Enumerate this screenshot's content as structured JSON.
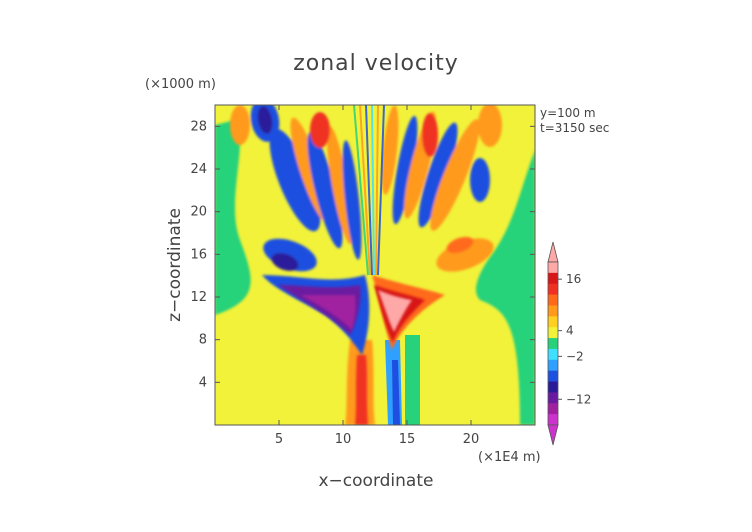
{
  "chart_data": {
    "type": "heatmap",
    "title": "zonal velocity",
    "xlabel": "x−coordinate",
    "ylabel": "z−coordinate",
    "x_units": "(×1E4 m)",
    "y_units": "(×1000 m)",
    "annotations": [
      "y=100 m",
      "t=3150 sec"
    ],
    "xlim": [
      0,
      25
    ],
    "ylim": [
      0,
      30
    ],
    "x_ticks": [
      5,
      10,
      15,
      20
    ],
    "y_ticks": [
      4,
      8,
      12,
      16,
      20,
      24,
      28
    ],
    "colorbar": {
      "colors": [
        "#cc33cc",
        "#a020a0",
        "#6a1aa0",
        "#2a1a9a",
        "#1f4fe0",
        "#2fa0ff",
        "#3fe0ff",
        "#27d27a",
        "#f2f23a",
        "#ffd020",
        "#ff9a1a",
        "#ff6a1a",
        "#f03020",
        "#d81818",
        "#ffa8a8"
      ],
      "tick_labels": [
        "16",
        "4",
        "−2",
        "−12"
      ],
      "tick_values": [
        16,
        4,
        -2,
        -12
      ],
      "range": [
        -18,
        20
      ],
      "extends": "both"
    },
    "background_value": "yellow (~0 m/s)",
    "feature": "symmetric wave-fan pattern centred near x=12.5, strong negative lobe left and positive lobe right at z≈10–14"
  }
}
